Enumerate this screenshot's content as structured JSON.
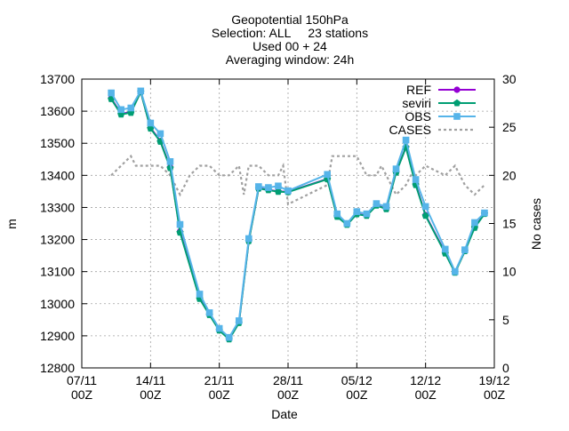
{
  "chart_data": {
    "type": "line",
    "title": [
      "Geopotential 150hPa",
      "Selection: ALL     23 stations",
      "Used 00 + 24",
      "Averaging window: 24h"
    ],
    "xlabel": "Date",
    "ylabel": "m",
    "y2label": "No cases",
    "xlim": [
      "2018-11-07T00:00",
      "2018-12-19T00:00"
    ],
    "ylim": [
      12800,
      13700
    ],
    "y2lim": [
      0,
      30
    ],
    "grid": true,
    "legend_position": "top-right",
    "xticks": [
      {
        "date": "2018-11-07",
        "label1": "07/11",
        "label2": "00Z"
      },
      {
        "date": "2018-11-14",
        "label1": "14/11",
        "label2": "00Z"
      },
      {
        "date": "2018-11-21",
        "label1": "21/11",
        "label2": "00Z"
      },
      {
        "date": "2018-11-28",
        "label1": "28/11",
        "label2": "00Z"
      },
      {
        "date": "2018-12-05",
        "label1": "05/12",
        "label2": "00Z"
      },
      {
        "date": "2018-12-12",
        "label1": "12/12",
        "label2": "00Z"
      },
      {
        "date": "2018-12-19",
        "label1": "19/12",
        "label2": "00Z"
      }
    ],
    "yticks": [
      "12800",
      "12900",
      "13000",
      "13100",
      "13200",
      "13300",
      "13400",
      "13500",
      "13600",
      "13700"
    ],
    "y2ticks": [
      "0",
      "5",
      "10",
      "15",
      "20",
      "25",
      "30"
    ],
    "x": [
      "2018-11-10",
      "2018-11-11",
      "2018-11-12",
      "2018-11-13",
      "2018-11-14",
      "2018-11-15",
      "2018-11-16",
      "2018-11-17",
      "2018-11-19",
      "2018-11-20",
      "2018-11-21",
      "2018-11-22",
      "2018-11-23",
      "2018-11-24",
      "2018-11-25",
      "2018-11-26",
      "2018-11-27",
      "2018-11-28",
      "2018-12-02",
      "2018-12-03",
      "2018-12-04",
      "2018-12-05",
      "2018-12-06",
      "2018-12-07",
      "2018-12-08",
      "2018-12-09",
      "2018-12-10",
      "2018-12-11",
      "2018-12-12",
      "2018-12-14",
      "2018-12-15",
      "2018-12-16",
      "2018-12-17",
      "2018-12-18"
    ],
    "series": [
      {
        "name": "REF",
        "color": "#9400d3",
        "marker": "circle",
        "values": [
          13640,
          13592,
          13597,
          13660,
          13548,
          13507,
          13425,
          13225,
          13017,
          12966,
          12918,
          12890,
          12941,
          13196,
          13360,
          13355,
          13350,
          13349,
          13389,
          13272,
          13247,
          13280,
          13275,
          13307,
          13296,
          13410,
          13488,
          13372,
          13276,
          13159,
          13098,
          13165,
          13238,
          13281
        ]
      },
      {
        "name": "seviri",
        "color": "#009e73",
        "marker": "pentagon",
        "values": [
          13638,
          13590,
          13595,
          13660,
          13546,
          13505,
          13423,
          13222,
          13015,
          12965,
          12917,
          12889,
          12940,
          13195,
          13359,
          13354,
          13349,
          13348,
          13388,
          13271,
          13246,
          13279,
          13274,
          13306,
          13295,
          13409,
          13487,
          13370,
          13274,
          13157,
          13097,
          13164,
          13237,
          13280
        ]
      },
      {
        "name": "OBS",
        "color": "#56b4e9",
        "marker": "square",
        "values": [
          13657,
          13605,
          13610,
          13663,
          13563,
          13530,
          13443,
          13247,
          13030,
          12972,
          12923,
          12895,
          12947,
          13203,
          13365,
          13362,
          13367,
          13352,
          13403,
          13280,
          13250,
          13287,
          13280,
          13312,
          13303,
          13420,
          13510,
          13387,
          13303,
          13170,
          13100,
          13168,
          13253,
          13283
        ]
      }
    ],
    "cases": {
      "name": "CASES",
      "axis": "y2",
      "color": "#a0a0a0",
      "style": "dotted",
      "x": [
        "2018-11-10",
        "2018-11-11",
        "2018-11-12",
        "2018-11-12T12:00",
        "2018-11-13",
        "2018-11-14",
        "2018-11-15",
        "2018-11-16",
        "2018-11-17",
        "2018-11-18",
        "2018-11-19",
        "2018-11-20",
        "2018-11-21",
        "2018-11-21T12:00",
        "2018-11-22",
        "2018-11-23",
        "2018-11-23T12:00",
        "2018-11-24",
        "2018-11-25",
        "2018-11-26",
        "2018-11-27",
        "2018-11-27T12:00",
        "2018-11-28",
        "2018-11-29",
        "2018-11-30",
        "2018-12-01",
        "2018-12-02",
        "2018-12-02T12:00",
        "2018-12-03",
        "2018-12-04",
        "2018-12-05",
        "2018-12-05T12:00",
        "2018-12-06",
        "2018-12-07",
        "2018-12-07T12:00",
        "2018-12-08",
        "2018-12-09",
        "2018-12-10",
        "2018-12-10T12:00",
        "2018-12-11",
        "2018-12-12",
        "2018-12-13",
        "2018-12-14",
        "2018-12-15",
        "2018-12-16",
        "2018-12-17",
        "2018-12-18"
      ],
      "values": [
        20,
        21,
        22,
        21,
        21,
        21,
        21,
        20,
        18,
        20,
        21,
        21,
        20,
        20,
        20,
        21,
        18,
        21,
        21,
        20,
        20,
        21,
        17,
        17.5,
        18,
        18.5,
        19,
        22,
        22,
        22,
        22,
        21,
        20,
        20,
        21,
        20,
        18,
        19,
        20,
        20,
        21,
        20.5,
        20,
        21,
        19,
        18,
        19
      ]
    }
  }
}
